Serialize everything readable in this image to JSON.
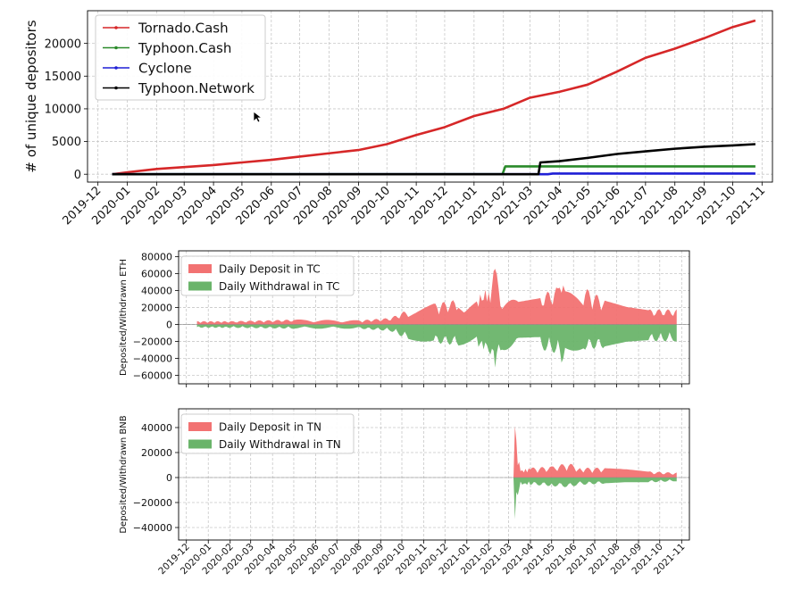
{
  "chart_data": [
    {
      "type": "line",
      "ylabel": "# of unique depositors",
      "xlabel": "",
      "x_ticks": [
        "2019-12",
        "2020-01",
        "2020-02",
        "2020-03",
        "2020-04",
        "2020-05",
        "2020-06",
        "2020-07",
        "2020-08",
        "2020-09",
        "2020-10",
        "2020-11",
        "2020-12",
        "2021-01",
        "2021-02",
        "2021-03",
        "2021-04",
        "2021-05",
        "2021-06",
        "2021-07",
        "2021-08",
        "2021-09",
        "2021-10",
        "2021-11"
      ],
      "y_ticks": [
        "0",
        "5000",
        "10000",
        "15000",
        "20000"
      ],
      "ylim": [
        -1200,
        25000
      ],
      "grid": true,
      "legend_position": "top-left",
      "series": [
        {
          "name": "Tornado.Cash",
          "color": "#d62728",
          "x": [
            "2019-12-16",
            "2020-01-01",
            "2020-02-01",
            "2020-03-01",
            "2020-04-01",
            "2020-05-01",
            "2020-06-01",
            "2020-07-01",
            "2020-08-01",
            "2020-09-01",
            "2020-10-01",
            "2020-11-01",
            "2020-12-01",
            "2021-01-01",
            "2021-02-01",
            "2021-03-01",
            "2021-04-01",
            "2021-05-01",
            "2021-06-01",
            "2021-07-01",
            "2021-08-01",
            "2021-09-01",
            "2021-10-01",
            "2021-10-25"
          ],
          "y": [
            0,
            300,
            800,
            1100,
            1400,
            1800,
            2200,
            2700,
            3200,
            3700,
            4600,
            6000,
            7200,
            8900,
            10000,
            11700,
            12600,
            13700,
            15700,
            17800,
            19200,
            20800,
            22500,
            23500
          ]
        },
        {
          "name": "Typhoon.Cash",
          "color": "#2a8a2a",
          "x": [
            "2019-12-16",
            "2021-01-31",
            "2021-02-03",
            "2021-10-25"
          ],
          "y": [
            0,
            0,
            1200,
            1200
          ]
        },
        {
          "name": "Cyclone",
          "color": "#1f1fd6",
          "x": [
            "2019-12-16",
            "2021-03-20",
            "2021-03-25",
            "2021-10-25"
          ],
          "y": [
            0,
            0,
            100,
            100
          ]
        },
        {
          "name": "Typhoon.Network",
          "color": "#000000",
          "x": [
            "2019-12-16",
            "2021-03-10",
            "2021-03-12",
            "2021-04-01",
            "2021-05-01",
            "2021-06-01",
            "2021-07-01",
            "2021-08-01",
            "2021-09-01",
            "2021-10-01",
            "2021-10-25"
          ],
          "y": [
            0,
            0,
            1800,
            2000,
            2500,
            3100,
            3500,
            3900,
            4200,
            4400,
            4600
          ]
        }
      ]
    },
    {
      "type": "area",
      "ylabel": "Deposited/Withdrawn ETH",
      "xlabel": "",
      "x_ticks": [
        "2019-12",
        "2020-01",
        "2020-02",
        "2020-03",
        "2020-04",
        "2020-05",
        "2020-06",
        "2020-07",
        "2020-08",
        "2020-09",
        "2020-10",
        "2020-11",
        "2020-12",
        "2021-01",
        "2021-02",
        "2021-03",
        "2021-04",
        "2021-05",
        "2021-06",
        "2021-07",
        "2021-08",
        "2021-09",
        "2021-10",
        "2021-11"
      ],
      "x_tick_labels_visible": false,
      "y_ticks": [
        "80000",
        "60000",
        "40000",
        "20000",
        "0",
        "−20000",
        "−40000",
        "−60000"
      ],
      "ylim": [
        -70000,
        87000
      ],
      "grid": true,
      "legend_position": "top-left",
      "series": [
        {
          "name": "Daily Deposit in TC",
          "color": "#f27272",
          "x": [
            "2019-12-16",
            "2020-02-01",
            "2020-05-01",
            "2020-08-01",
            "2020-09-15",
            "2020-10-10",
            "2020-11-15",
            "2020-12-20",
            "2021-01-15",
            "2021-02-01",
            "2021-02-10",
            "2021-02-20",
            "2021-03-15",
            "2021-04-15",
            "2021-05-10",
            "2021-05-15",
            "2021-05-20",
            "2021-06-15",
            "2021-07-15",
            "2021-08-15",
            "2021-09-15",
            "2021-10-25"
          ],
          "y": [
            4000,
            4000,
            6000,
            5000,
            8000,
            18000,
            25000,
            30000,
            32000,
            45000,
            70000,
            28000,
            30000,
            35000,
            45000,
            75000,
            40000,
            45000,
            30000,
            22000,
            18000,
            18000
          ]
        },
        {
          "name": "Daily Withdrawal in TC",
          "color": "#6ab46a",
          "x": [
            "2019-12-16",
            "2020-02-01",
            "2020-05-01",
            "2020-08-01",
            "2020-09-15",
            "2020-10-10",
            "2020-11-15",
            "2020-12-20",
            "2021-01-15",
            "2021-02-01",
            "2021-02-10",
            "2021-02-20",
            "2021-03-15",
            "2021-04-15",
            "2021-05-10",
            "2021-05-15",
            "2021-05-20",
            "2021-06-15",
            "2021-07-15",
            "2021-08-15",
            "2021-09-15",
            "2021-10-25"
          ],
          "y": [
            -4000,
            -4000,
            -5000,
            -5000,
            -8000,
            -18000,
            -22000,
            -25000,
            -26000,
            -32000,
            -55000,
            -30000,
            -32000,
            -30000,
            -35000,
            -48000,
            -32000,
            -30000,
            -28000,
            -22000,
            -20000,
            -20000
          ]
        }
      ]
    },
    {
      "type": "area",
      "ylabel": "Deposited/Withdrawn BNB",
      "xlabel": "",
      "x_ticks": [
        "2019-12",
        "2020-01",
        "2020-02",
        "2020-03",
        "2020-04",
        "2020-05",
        "2020-06",
        "2020-07",
        "2020-08",
        "2020-09",
        "2020-10",
        "2020-11",
        "2020-12",
        "2021-01",
        "2021-02",
        "2021-03",
        "2021-04",
        "2021-05",
        "2021-06",
        "2021-07",
        "2021-08",
        "2021-09",
        "2021-10",
        "2021-11"
      ],
      "y_ticks": [
        "40000",
        "20000",
        "0",
        "−20000",
        "−40000"
      ],
      "ylim": [
        -50000,
        55000
      ],
      "grid": true,
      "legend_position": "top-left",
      "series": [
        {
          "name": "Daily Deposit in TN",
          "color": "#f27272",
          "x": [
            "2021-03-08",
            "2021-03-10",
            "2021-03-14",
            "2021-03-18",
            "2021-04-01",
            "2021-05-01",
            "2021-05-25",
            "2021-06-10",
            "2021-07-15",
            "2021-08-15",
            "2021-09-15",
            "2021-10-25"
          ],
          "y": [
            0,
            45000,
            20000,
            6000,
            8000,
            9000,
            12000,
            8000,
            8000,
            7000,
            5000,
            4000
          ]
        },
        {
          "name": "Daily Withdrawal in TN",
          "color": "#6ab46a",
          "x": [
            "2021-03-08",
            "2021-03-10",
            "2021-03-14",
            "2021-03-18",
            "2021-04-01",
            "2021-05-01",
            "2021-05-25",
            "2021-06-10",
            "2021-07-15",
            "2021-08-15",
            "2021-09-15",
            "2021-10-25"
          ],
          "y": [
            0,
            -35000,
            -15000,
            -6000,
            -6000,
            -7000,
            -8000,
            -6000,
            -5000,
            -4000,
            -4000,
            -3000
          ]
        }
      ]
    }
  ],
  "icons": {
    "cursor": "mouse-pointer-icon"
  }
}
